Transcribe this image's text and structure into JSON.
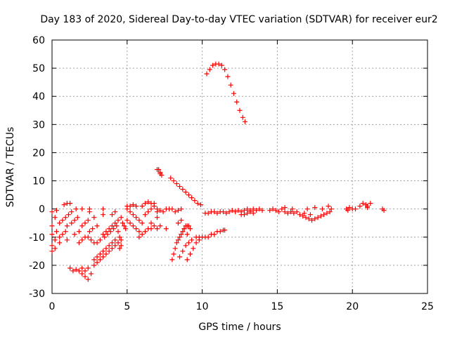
{
  "chart_data": {
    "type": "scatter",
    "title": "Day 183 of 2020, Sidereal Day-to-day VTEC variation (SDTVAR) for receiver eur2",
    "xlabel": "GPS time / hours",
    "ylabel": "SDTVAR / TECUs",
    "xlim": [
      0,
      25
    ],
    "ylim": [
      -30,
      60
    ],
    "xticks": [
      0,
      5,
      10,
      15,
      20,
      25
    ],
    "yticks": [
      -30,
      -20,
      -10,
      0,
      10,
      20,
      30,
      40,
      50,
      60
    ],
    "xtick_labels": [
      "0",
      "5",
      "10",
      "15",
      "20",
      "25"
    ],
    "ytick_labels": [
      "-30",
      "-20",
      "-10",
      "0",
      "10",
      "20",
      "30",
      "40",
      "50",
      "60"
    ],
    "grid": true,
    "marker": "+",
    "color": "#ff0000",
    "series": [
      {
        "name": "SDTVAR",
        "points": [
          [
            0.0,
            -1
          ],
          [
            0.0,
            -6
          ],
          [
            0.0,
            -9
          ],
          [
            0.0,
            -13
          ],
          [
            0.0,
            -15
          ],
          [
            0.2,
            -3
          ],
          [
            0.2,
            -11
          ],
          [
            0.2,
            -14
          ],
          [
            0.3,
            -0.5
          ],
          [
            0.3,
            -8
          ],
          [
            0.5,
            -5
          ],
          [
            0.5,
            -10
          ],
          [
            0.5,
            -12
          ],
          [
            0.7,
            -4
          ],
          [
            0.7,
            -9
          ],
          [
            0.9,
            -3
          ],
          [
            0.9,
            -8
          ],
          [
            1.0,
            -6
          ],
          [
            1.0,
            -11
          ],
          [
            1.1,
            -2
          ],
          [
            0.8,
            1.5
          ],
          [
            1.0,
            2
          ],
          [
            1.2,
            2
          ],
          [
            1.3,
            -1
          ],
          [
            1.3,
            -5
          ],
          [
            1.5,
            -4
          ],
          [
            1.5,
            -9
          ],
          [
            1.7,
            -3
          ],
          [
            1.8,
            -8
          ],
          [
            1.8,
            -12
          ],
          [
            2.0,
            -6
          ],
          [
            2.0,
            -11
          ],
          [
            2.2,
            -5
          ],
          [
            2.2,
            -10
          ],
          [
            2.4,
            -4
          ],
          [
            2.5,
            -8
          ],
          [
            2.5,
            -1
          ],
          [
            2.7,
            -7
          ],
          [
            2.8,
            -3
          ],
          [
            3.0,
            -6
          ],
          [
            1.6,
            0
          ],
          [
            2.0,
            0
          ],
          [
            2.5,
            0
          ],
          [
            3.4,
            0
          ],
          [
            3.4,
            -2
          ],
          [
            1.2,
            -21
          ],
          [
            1.4,
            -22
          ],
          [
            1.6,
            -21.5
          ],
          [
            1.8,
            -22
          ],
          [
            2.0,
            -21
          ],
          [
            2.2,
            -22
          ],
          [
            2.4,
            -21
          ],
          [
            2.0,
            -23
          ],
          [
            2.2,
            -24
          ],
          [
            2.4,
            -25
          ],
          [
            2.6,
            -23
          ],
          [
            2.8,
            -20
          ],
          [
            2.8,
            -18
          ],
          [
            3.0,
            -17
          ],
          [
            3.2,
            -16
          ],
          [
            3.4,
            -15
          ],
          [
            3.6,
            -14
          ],
          [
            3.8,
            -13
          ],
          [
            4.0,
            -12
          ],
          [
            4.2,
            -11
          ],
          [
            3.0,
            -19
          ],
          [
            3.2,
            -18
          ],
          [
            3.4,
            -17
          ],
          [
            3.6,
            -16
          ],
          [
            3.8,
            -15
          ],
          [
            4.0,
            -14
          ],
          [
            4.2,
            -13
          ],
          [
            4.4,
            -12
          ],
          [
            4.6,
            -13
          ],
          [
            4.5,
            -14
          ],
          [
            2.4,
            -10
          ],
          [
            2.6,
            -11
          ],
          [
            2.8,
            -12
          ],
          [
            3.0,
            -12
          ],
          [
            3.2,
            -11
          ],
          [
            3.4,
            -9
          ],
          [
            3.6,
            -8
          ],
          [
            3.8,
            -7
          ],
          [
            4.0,
            -6
          ],
          [
            4.2,
            -5
          ],
          [
            4.4,
            -4
          ],
          [
            4.6,
            -3
          ],
          [
            4.7,
            -5
          ],
          [
            4.8,
            -6
          ],
          [
            4.9,
            -7
          ],
          [
            3.5,
            -10
          ],
          [
            3.7,
            -9
          ],
          [
            3.9,
            -8
          ],
          [
            4.1,
            -7
          ],
          [
            4.3,
            -6
          ],
          [
            4.0,
            -2
          ],
          [
            4.2,
            -1
          ],
          [
            4.4,
            -8
          ],
          [
            4.5,
            -10
          ],
          [
            4.6,
            -11
          ],
          [
            5.0,
            0
          ],
          [
            5.0,
            1
          ],
          [
            5.2,
            1
          ],
          [
            5.4,
            1.5
          ],
          [
            5.6,
            1
          ],
          [
            5.2,
            -1
          ],
          [
            5.4,
            -2
          ],
          [
            5.6,
            -3
          ],
          [
            5.8,
            -4
          ],
          [
            6.0,
            -5
          ],
          [
            5.0,
            -4
          ],
          [
            5.2,
            -5
          ],
          [
            5.4,
            -6
          ],
          [
            5.6,
            -7
          ],
          [
            5.8,
            -8
          ],
          [
            5.8,
            -10
          ],
          [
            6.0,
            -9
          ],
          [
            6.2,
            -8
          ],
          [
            6.4,
            -7
          ],
          [
            6.6,
            -7
          ],
          [
            6.2,
            -2
          ],
          [
            6.4,
            -1
          ],
          [
            6.6,
            0
          ],
          [
            6.8,
            1
          ],
          [
            7.0,
            0
          ],
          [
            6.0,
            1
          ],
          [
            6.2,
            2
          ],
          [
            6.4,
            2.5
          ],
          [
            6.6,
            2
          ],
          [
            6.8,
            2
          ],
          [
            7.0,
            -1
          ],
          [
            7.2,
            -0.5
          ],
          [
            7.4,
            -1
          ],
          [
            7.6,
            0
          ],
          [
            7.8,
            0
          ],
          [
            6.6,
            -5
          ],
          [
            6.8,
            -6
          ],
          [
            7.0,
            -7
          ],
          [
            7.0,
            -3
          ],
          [
            7.2,
            -6
          ],
          [
            7.1,
            14
          ],
          [
            7.2,
            13
          ],
          [
            7.3,
            12
          ],
          [
            7.2,
            12.5
          ],
          [
            7.0,
            14
          ],
          [
            7.6,
            -7
          ],
          [
            8.2,
            -1
          ],
          [
            8.4,
            -0.5
          ],
          [
            8.6,
            0
          ],
          [
            8.0,
            0
          ],
          [
            7.9,
            11
          ],
          [
            8.1,
            10
          ],
          [
            8.3,
            9
          ],
          [
            8.5,
            8
          ],
          [
            8.7,
            7
          ],
          [
            8.9,
            6
          ],
          [
            9.1,
            5
          ],
          [
            9.3,
            4
          ],
          [
            9.5,
            3
          ],
          [
            9.7,
            2
          ],
          [
            9.9,
            1.5
          ],
          [
            8.0,
            -18
          ],
          [
            8.1,
            -16
          ],
          [
            8.2,
            -14
          ],
          [
            8.3,
            -12
          ],
          [
            8.4,
            -11
          ],
          [
            8.5,
            -10
          ],
          [
            8.6,
            -9
          ],
          [
            8.7,
            -8
          ],
          [
            8.8,
            -7
          ],
          [
            8.9,
            -6
          ],
          [
            8.5,
            -17
          ],
          [
            8.7,
            -15
          ],
          [
            8.9,
            -13
          ],
          [
            9.1,
            -12
          ],
          [
            9.3,
            -11
          ],
          [
            9.0,
            -18
          ],
          [
            9.2,
            -16
          ],
          [
            9.4,
            -14
          ],
          [
            9.6,
            -12
          ],
          [
            9.8,
            -11
          ],
          [
            9.0,
            -6
          ],
          [
            9.1,
            -6
          ],
          [
            9.2,
            -7
          ],
          [
            9.6,
            -10
          ],
          [
            9.8,
            -10
          ],
          [
            10.0,
            -10
          ],
          [
            10.2,
            -10
          ],
          [
            10.4,
            -10
          ],
          [
            10.6,
            -9
          ],
          [
            10.8,
            -9
          ],
          [
            11.0,
            -8
          ],
          [
            11.2,
            -8
          ],
          [
            11.4,
            -7.5
          ],
          [
            11.5,
            -7.5
          ],
          [
            10.2,
            -1.5
          ],
          [
            10.4,
            -1.5
          ],
          [
            10.6,
            -1
          ],
          [
            10.8,
            -1
          ],
          [
            11.0,
            -1.5
          ],
          [
            11.2,
            -1
          ],
          [
            11.4,
            -1
          ],
          [
            11.6,
            -1.5
          ],
          [
            11.8,
            -1
          ],
          [
            12.0,
            -0.5
          ],
          [
            12.2,
            -1
          ],
          [
            12.4,
            -0.5
          ],
          [
            12.6,
            -1
          ],
          [
            12.8,
            -0.5
          ],
          [
            13.0,
            0
          ],
          [
            13.2,
            -0.5
          ],
          [
            13.4,
            0
          ],
          [
            13.6,
            -0.5
          ],
          [
            13.8,
            0
          ],
          [
            14.0,
            -0.5
          ],
          [
            12.6,
            -2
          ],
          [
            12.8,
            -2
          ],
          [
            13.0,
            -1.5
          ],
          [
            13.2,
            -1
          ],
          [
            13.4,
            -1.5
          ],
          [
            14.5,
            -0.5
          ],
          [
            14.7,
            0
          ],
          [
            14.9,
            -0.5
          ],
          [
            15.1,
            -1
          ],
          [
            15.3,
            0
          ],
          [
            15.5,
            -1
          ],
          [
            15.7,
            -1.5
          ],
          [
            15.9,
            -1
          ],
          [
            16.1,
            -1.5
          ],
          [
            16.3,
            -1
          ],
          [
            16.5,
            -2
          ],
          [
            16.7,
            -2.5
          ],
          [
            16.9,
            -3
          ],
          [
            17.1,
            -3.5
          ],
          [
            17.3,
            -4
          ],
          [
            17.5,
            -3.5
          ],
          [
            17.7,
            -3
          ],
          [
            17.9,
            -2.5
          ],
          [
            18.1,
            -2
          ],
          [
            18.3,
            -1.5
          ],
          [
            18.5,
            -1
          ],
          [
            18.6,
            0
          ],
          [
            18.0,
            0
          ],
          [
            17.5,
            0.5
          ],
          [
            17.0,
            0
          ],
          [
            16.0,
            0
          ],
          [
            15.5,
            0.5
          ],
          [
            16.8,
            -1.5
          ],
          [
            17.2,
            -2
          ],
          [
            18.4,
            1
          ],
          [
            10.3,
            48
          ],
          [
            10.5,
            49.5
          ],
          [
            10.7,
            51
          ],
          [
            10.9,
            51.5
          ],
          [
            11.1,
            51.5
          ],
          [
            11.3,
            51
          ],
          [
            11.5,
            49.5
          ],
          [
            11.7,
            47
          ],
          [
            11.9,
            44
          ],
          [
            12.1,
            41
          ],
          [
            12.3,
            38
          ],
          [
            12.5,
            35
          ],
          [
            12.7,
            32.5
          ],
          [
            12.85,
            31
          ],
          [
            8.4,
            -5
          ],
          [
            8.6,
            -4
          ],
          [
            8.8,
            -7
          ],
          [
            9.0,
            -9
          ],
          [
            19.6,
            0
          ],
          [
            19.8,
            0.5
          ],
          [
            20.0,
            0
          ],
          [
            20.2,
            0
          ],
          [
            20.5,
            1
          ],
          [
            20.7,
            2
          ],
          [
            20.9,
            1.5
          ],
          [
            21.0,
            1
          ],
          [
            21.2,
            2
          ],
          [
            22.0,
            0
          ],
          [
            22.1,
            -0.5
          ],
          [
            21.0,
            0.5
          ],
          [
            19.7,
            -0.5
          ]
        ]
      }
    ]
  }
}
